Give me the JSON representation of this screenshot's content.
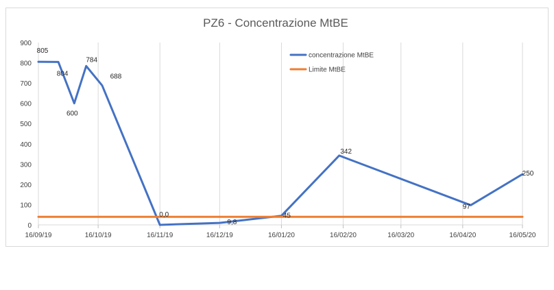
{
  "chart_data": {
    "type": "line",
    "title": "PZ6 - Concentrazione MtBE",
    "xlabel": "",
    "ylabel": "",
    "ylim": [
      0,
      900
    ],
    "y_ticks": [
      0,
      100,
      200,
      300,
      400,
      500,
      600,
      700,
      800,
      900
    ],
    "x_ticks": [
      "16/09/19",
      "16/10/19",
      "16/11/19",
      "16/12/19",
      "16/01/20",
      "16/02/20",
      "16/03/20",
      "16/04/20",
      "16/05/20"
    ],
    "grid": "vertical",
    "legend": "top-right",
    "series": [
      {
        "name": "concentrazione MtBE",
        "color": "#4472C4",
        "points": [
          {
            "x": "2019-09-16",
            "y": 805,
            "label": "805"
          },
          {
            "x": "2019-09-26",
            "y": 804,
            "label": "804"
          },
          {
            "x": "2019-10-04",
            "y": 600,
            "label": "600"
          },
          {
            "x": "2019-10-10",
            "y": 784,
            "label": "784"
          },
          {
            "x": "2019-10-18",
            "y": 688,
            "label": "688"
          },
          {
            "x": "2019-11-16",
            "y": 0,
            "label": "0,0"
          },
          {
            "x": "2019-12-16",
            "y": 9.8,
            "label": "9,8"
          },
          {
            "x": "2020-01-16",
            "y": 45,
            "label": "45"
          },
          {
            "x": "2020-02-14",
            "y": 342,
            "label": "342"
          },
          {
            "x": "2020-04-20",
            "y": 97,
            "label": "97"
          },
          {
            "x": "2020-05-16",
            "y": 250,
            "label": "250"
          }
        ]
      },
      {
        "name": "Limite MtBE",
        "color": "#ED7D31",
        "points": [
          {
            "x": "2019-09-16",
            "y": 40
          },
          {
            "x": "2020-05-16",
            "y": 40
          }
        ]
      }
    ]
  }
}
